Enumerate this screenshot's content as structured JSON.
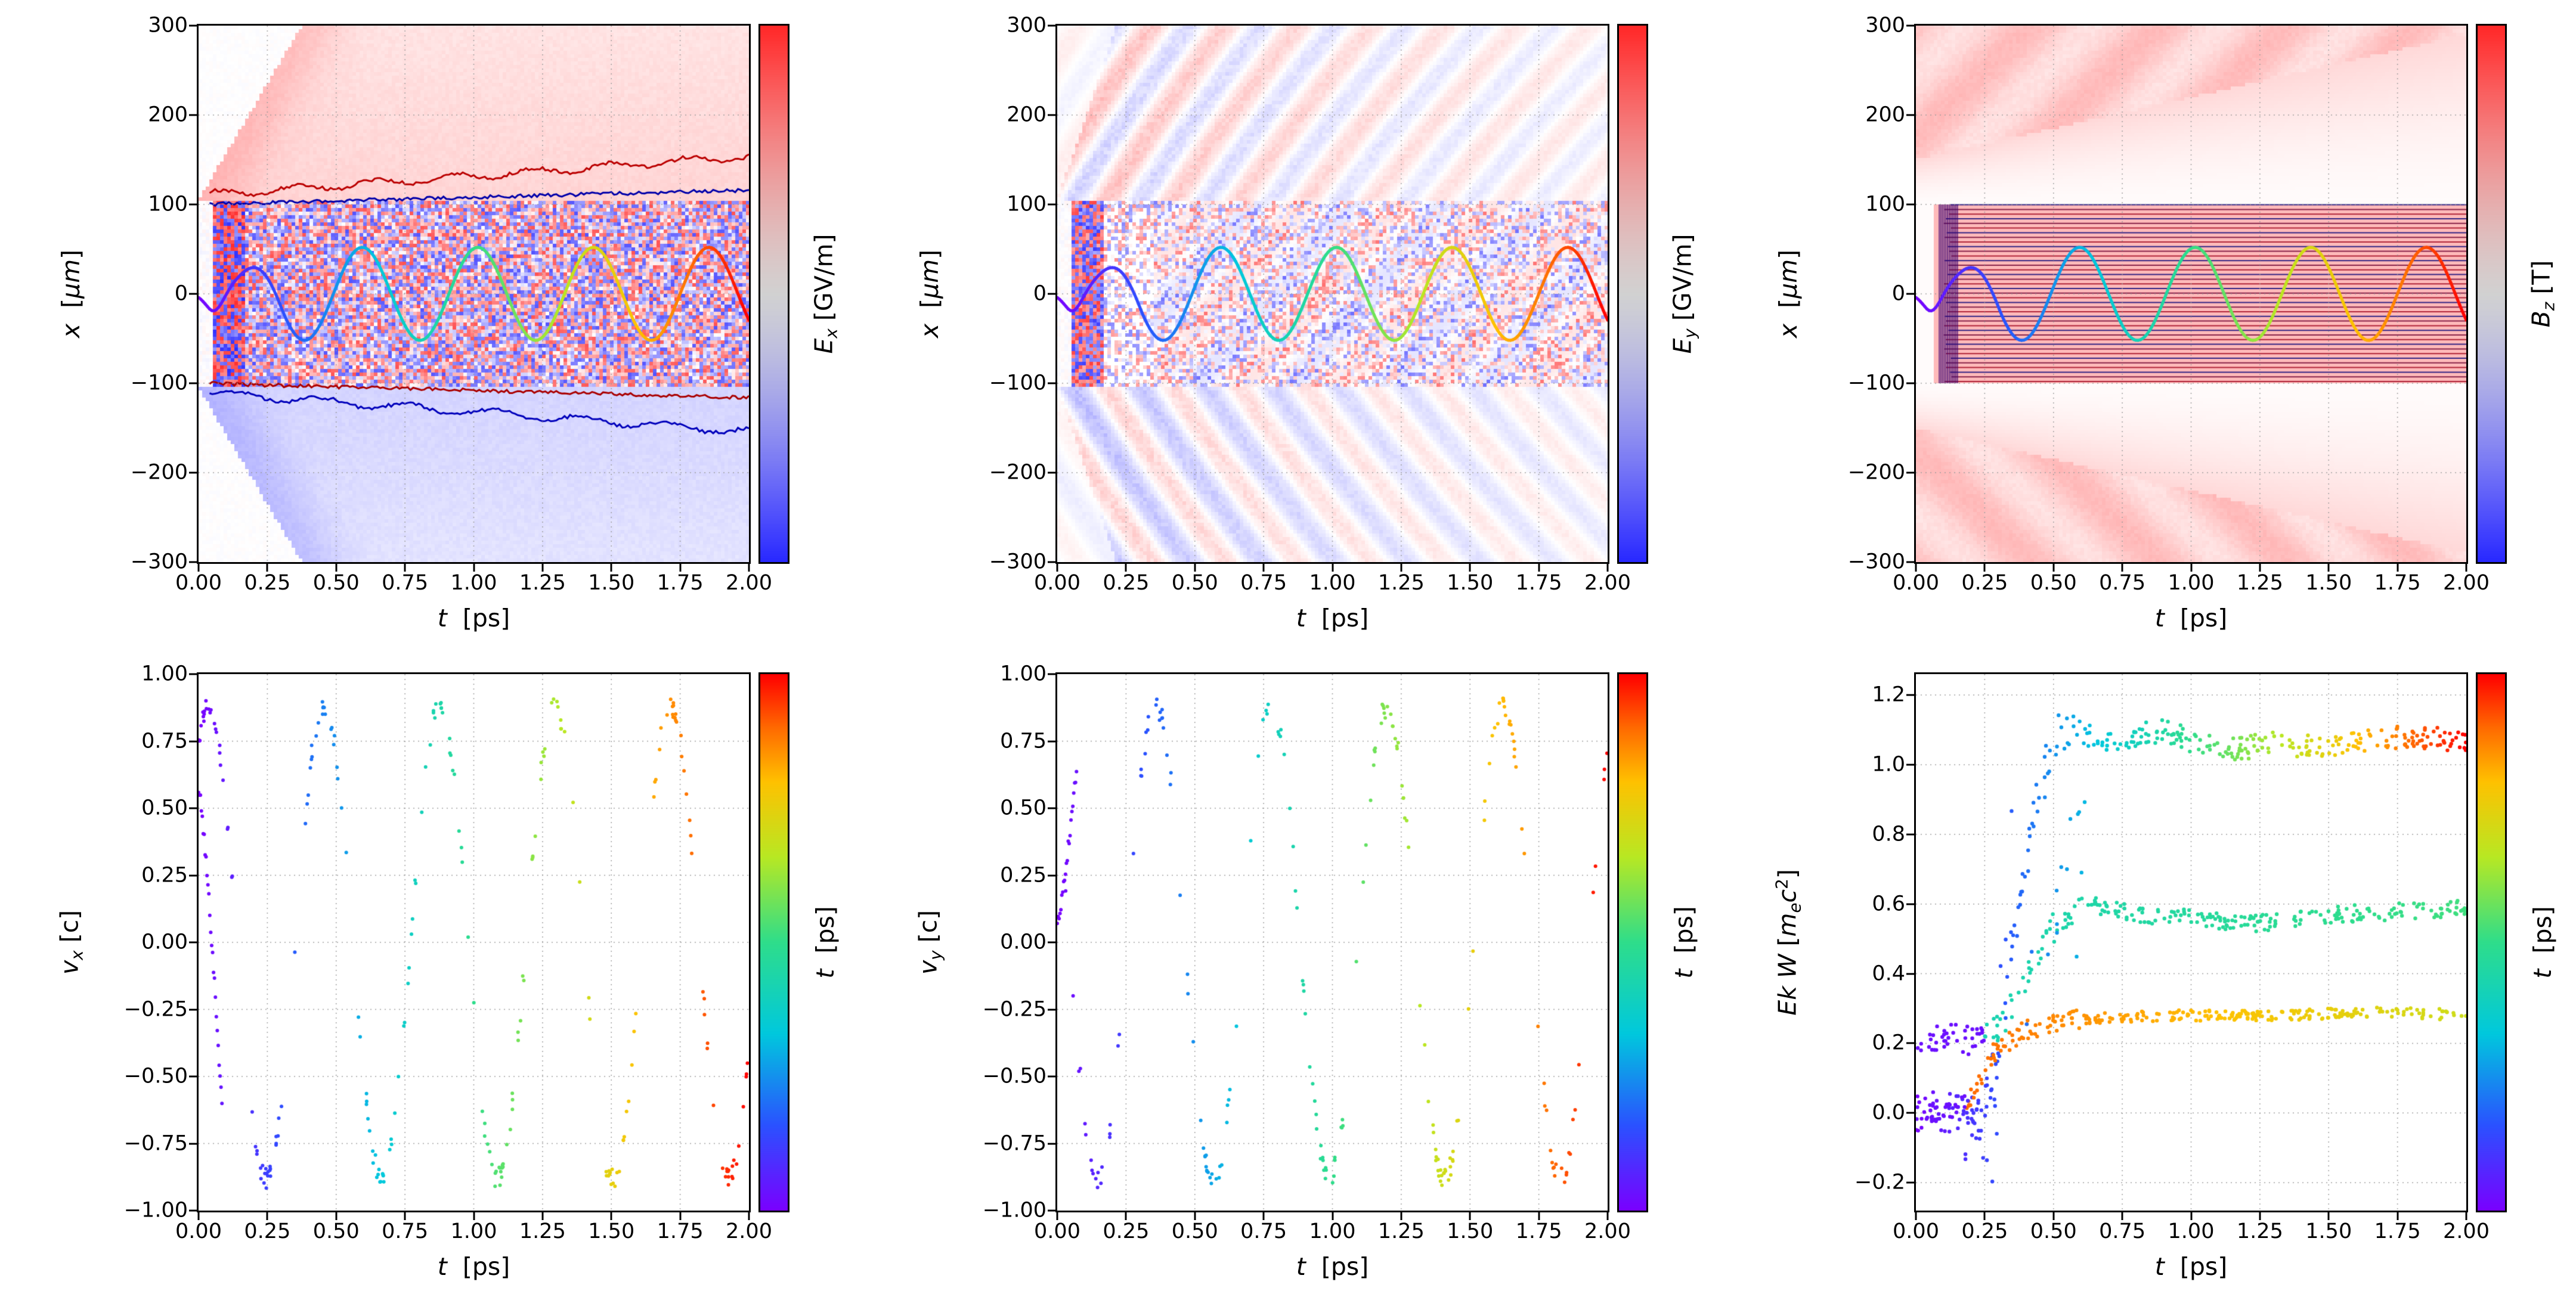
{
  "figure": {
    "background": "#ffffff",
    "description": "2x3 grid of particle-in-cell simulation diagnostic panels: field maps Ex, Ey, Bz vs (t,x) with a time-colored particle trajectory, and scatter plots of vx, vy and kinetic energy vs time colored by t"
  },
  "palettes": {
    "rainbow": [
      [
        0,
        "#7a00ff"
      ],
      [
        0.16,
        "#2a52ff"
      ],
      [
        0.33,
        "#00c8dd"
      ],
      [
        0.5,
        "#2edd8b"
      ],
      [
        0.66,
        "#b8e823"
      ],
      [
        0.8,
        "#ffc100"
      ],
      [
        0.9,
        "#ff6a00"
      ],
      [
        1,
        "#ff0000"
      ]
    ],
    "field_pos": "#ff0000",
    "field_neg": "#0000ff",
    "grid": "#999999"
  },
  "chart_data": [
    {
      "id": "ex-map",
      "type": "heatmap",
      "field": "Ex",
      "seed": 7,
      "xlabel_segments": [
        {
          "t": "t",
          "it": true
        },
        {
          "t": "  [ps]"
        }
      ],
      "ylabel_segments": [
        {
          "t": "x",
          "it": true
        },
        {
          "t": "  ["
        },
        {
          "t": "μm",
          "it": true
        },
        {
          "t": "]"
        }
      ],
      "colorbar": {
        "colormap": "bwr",
        "label_segments": [
          {
            "t": "E",
            "it": true
          },
          {
            "t": "x",
            "it": true,
            "sub": true
          },
          {
            "t": " [GV/m]"
          }
        ]
      },
      "xlim": [
        0,
        2
      ],
      "ylim": [
        -300,
        300
      ],
      "grid": true,
      "xticks": {
        "values": [
          0,
          0.25,
          0.5,
          0.75,
          1,
          1.25,
          1.5,
          1.75,
          2
        ],
        "labels": [
          "0.00",
          "0.25",
          "0.50",
          "0.75",
          "1.00",
          "1.25",
          "1.50",
          "1.75",
          "2.00"
        ]
      },
      "yticks": {
        "values": [
          300,
          200,
          100,
          0,
          -100,
          -200,
          -300
        ],
        "labels": [
          "300",
          "200",
          "100",
          "0",
          "−100",
          "−200",
          "−300"
        ]
      },
      "features": {
        "core_halfwidth": 105,
        "edge_start": 110,
        "edge_growth": 22,
        "inner_line": 100,
        "inner_line_growth": 8,
        "wedge_slope": 520,
        "wash": 0.2,
        "speckle": 0.8,
        "burst_t": [
          0.055,
          0.17
        ]
      },
      "trajectory": {
        "amp": 52,
        "period": 0.42,
        "t0": 0.07,
        "ramp": 0.28,
        "dip_t": 0.055,
        "dip_a": -18,
        "dip_w": 0.045,
        "color_by": "t"
      }
    },
    {
      "id": "ey-map",
      "type": "heatmap",
      "field": "Ey",
      "seed": 13,
      "xlabel_segments": [
        {
          "t": "t",
          "it": true
        },
        {
          "t": "  [ps]"
        }
      ],
      "ylabel_segments": [
        {
          "t": "x",
          "it": true
        },
        {
          "t": "  ["
        },
        {
          "t": "μm",
          "it": true
        },
        {
          "t": "]"
        }
      ],
      "colorbar": {
        "colormap": "bwr",
        "label_segments": [
          {
            "t": "E",
            "it": true
          },
          {
            "t": "y",
            "it": true,
            "sub": true
          },
          {
            "t": " [GV/m]"
          }
        ]
      },
      "xlim": [
        0,
        2
      ],
      "ylim": [
        -300,
        300
      ],
      "grid": true,
      "xticks": {
        "values": [
          0,
          0.25,
          0.5,
          0.75,
          1,
          1.25,
          1.5,
          1.75,
          2
        ],
        "labels": [
          "0.00",
          "0.25",
          "0.50",
          "0.75",
          "1.00",
          "1.25",
          "1.50",
          "1.75",
          "2.00"
        ]
      },
      "yticks": {
        "values": [
          300,
          200,
          100,
          0,
          -100,
          -200,
          -300
        ],
        "labels": [
          "300",
          "200",
          "100",
          "0",
          "−100",
          "−200",
          "−300"
        ]
      },
      "features": {
        "core_halfwidth": 105,
        "stripe_amp": 0.34,
        "stripe_freq": 26,
        "stripe_spatial": 0.05,
        "decay": 0.55,
        "overlay_amp": 0.12,
        "burst_t": [
          0.055,
          0.17
        ]
      },
      "trajectory": {
        "amp": 52,
        "period": 0.42,
        "t0": 0.07,
        "ramp": 0.28,
        "dip_t": 0.055,
        "dip_a": -18,
        "dip_w": 0.045,
        "color_by": "t"
      }
    },
    {
      "id": "bz-map",
      "type": "heatmap",
      "field": "Bz",
      "seed": 21,
      "xlabel_segments": [
        {
          "t": "t",
          "it": true
        },
        {
          "t": "  [ps]"
        }
      ],
      "ylabel_segments": [
        {
          "t": "x",
          "it": true
        },
        {
          "t": "  ["
        },
        {
          "t": "μm",
          "it": true
        },
        {
          "t": "]"
        }
      ],
      "colorbar": {
        "colormap": "bwr",
        "label_segments": [
          {
            "t": "B",
            "it": true
          },
          {
            "t": "z",
            "it": true,
            "sub": true
          },
          {
            "t": " [T]"
          }
        ]
      },
      "xlim": [
        0,
        2
      ],
      "ylim": [
        -300,
        300
      ],
      "grid": true,
      "xticks": {
        "values": [
          0,
          0.25,
          0.5,
          0.75,
          1,
          1.25,
          1.5,
          1.75,
          2
        ],
        "labels": [
          "0.00",
          "0.25",
          "0.50",
          "0.75",
          "1.00",
          "1.25",
          "1.50",
          "1.75",
          "2.00"
        ]
      },
      "yticks": {
        "values": [
          300,
          200,
          100,
          0,
          -100,
          -200,
          -300
        ],
        "labels": [
          "300",
          "200",
          "100",
          "0",
          "−100",
          "−200",
          "−300"
        ]
      },
      "features": {
        "background": 0.27,
        "core_halfwidth": 100,
        "gap_outer_start": 150,
        "gap_growth": 70,
        "comb_t": [
          0.085,
          0.155
        ],
        "stripe_colors": [
          "#9e0019",
          "#6b0030",
          "#000078"
        ]
      },
      "trajectory": {
        "amp": 52,
        "period": 0.42,
        "t0": 0.07,
        "ramp": 0.28,
        "dip_t": 0.055,
        "dip_a": -18,
        "dip_w": 0.045,
        "color_by": "t"
      }
    },
    {
      "id": "vx-scatter",
      "type": "scatter",
      "seed": 101,
      "xlabel_segments": [
        {
          "t": "t",
          "it": true
        },
        {
          "t": "  [ps]"
        }
      ],
      "ylabel_segments": [
        {
          "t": "v",
          "it": true
        },
        {
          "t": "x",
          "it": true,
          "sub": true
        },
        {
          "t": " [c]"
        }
      ],
      "colorbar": {
        "colormap": "rainbow",
        "label_segments": [
          {
            "t": "t",
            "it": true
          },
          {
            "t": "  [ps]"
          }
        ]
      },
      "xlim": [
        0,
        2
      ],
      "ylim": [
        -1,
        1
      ],
      "grid": true,
      "xticks": {
        "values": [
          0,
          0.25,
          0.5,
          0.75,
          1,
          1.25,
          1.5,
          1.75,
          2
        ],
        "labels": [
          "0.00",
          "0.25",
          "0.50",
          "0.75",
          "1.00",
          "1.25",
          "1.50",
          "1.75",
          "2.00"
        ]
      },
      "yticks": {
        "values": [
          1,
          0.75,
          0.5,
          0.25,
          0,
          -0.25,
          -0.5,
          -0.75,
          -1
        ],
        "labels": [
          "1.00",
          "0.75",
          "0.50",
          "0.25",
          "0.00",
          "−0.25",
          "−0.50",
          "−0.75",
          "−1.00"
        ]
      },
      "series": {
        "kind": "velocity",
        "amp": 0.88,
        "period": 0.42,
        "phase": -0.07,
        "phase_offset": 0,
        "n": 560,
        "jitter": 0.04,
        "start_arc": {
          "t_start": 0,
          "t_end": 0.085,
          "v_start": 0.57,
          "v_end": -0.62,
          "n": 26
        }
      },
      "color_by": "t"
    },
    {
      "id": "vy-scatter",
      "type": "scatter",
      "seed": 202,
      "xlabel_segments": [
        {
          "t": "t",
          "it": true
        },
        {
          "t": "  [ps]"
        }
      ],
      "ylabel_segments": [
        {
          "t": "v",
          "it": true
        },
        {
          "t": "y",
          "it": true,
          "sub": true
        },
        {
          "t": " [c]"
        }
      ],
      "colorbar": {
        "colormap": "rainbow",
        "label_segments": [
          {
            "t": "t",
            "it": true
          },
          {
            "t": "  [ps]"
          }
        ]
      },
      "xlim": [
        0,
        2
      ],
      "ylim": [
        -1,
        1
      ],
      "grid": true,
      "xticks": {
        "values": [
          0,
          0.25,
          0.5,
          0.75,
          1,
          1.25,
          1.5,
          1.75,
          2
        ],
        "labels": [
          "0.00",
          "0.25",
          "0.50",
          "0.75",
          "1.00",
          "1.25",
          "1.50",
          "1.75",
          "2.00"
        ]
      },
      "yticks": {
        "values": [
          1,
          0.75,
          0.5,
          0.25,
          0,
          -0.25,
          -0.5,
          -0.75,
          -1
        ],
        "labels": [
          "1.00",
          "0.75",
          "0.50",
          "0.25",
          "0.00",
          "−0.25",
          "−0.50",
          "−0.75",
          "−1.00"
        ]
      },
      "series": {
        "kind": "velocity",
        "amp": 0.88,
        "period": 0.42,
        "phase": -0.07,
        "phase_offset": 1.45,
        "n": 560,
        "jitter": 0.04,
        "start_arc": {
          "t_start": 0,
          "t_end": 0.07,
          "v_start": 0.08,
          "v_end": 0.65,
          "n": 22
        }
      },
      "color_by": "t"
    },
    {
      "id": "energy-scatter",
      "type": "scatter",
      "seed": 303,
      "xlabel_segments": [
        {
          "t": "t",
          "it": true
        },
        {
          "t": "  [ps]"
        }
      ],
      "ylabel_segments": [
        {
          "t": "Ek W",
          "it": true
        },
        {
          "t": " ["
        },
        {
          "t": "m",
          "it": true
        },
        {
          "t": "e",
          "it": true,
          "sub": true
        },
        {
          "t": "c",
          "it": true
        },
        {
          "t": "2",
          "sup": true
        },
        {
          "t": "]"
        }
      ],
      "colorbar": {
        "colormap": "rainbow",
        "label_segments": [
          {
            "t": "t",
            "it": true
          },
          {
            "t": "  [ps]"
          }
        ]
      },
      "xlim": [
        0,
        2
      ],
      "ylim": [
        -0.28,
        1.26
      ],
      "grid": true,
      "xticks": {
        "values": [
          0,
          0.25,
          0.5,
          0.75,
          1,
          1.25,
          1.5,
          1.75,
          2
        ],
        "labels": [
          "0.00",
          "0.25",
          "0.50",
          "0.75",
          "1.00",
          "1.25",
          "1.50",
          "1.75",
          "2.00"
        ]
      },
      "yticks": {
        "values": [
          1.2,
          1.0,
          0.8,
          0.6,
          0.4,
          0.2,
          0.0,
          -0.2
        ],
        "labels": [
          "1.2",
          "1.0",
          "0.8",
          "0.6",
          "0.4",
          "0.2",
          "0.0",
          "−0.2"
        ]
      },
      "branches": [
        {
          "name": "top",
          "n": 330,
          "jitter": 0.028,
          "color": {
            "mode": "time"
          },
          "keypoints": [
            [
              0,
              0
            ],
            [
              0.18,
              0
            ],
            [
              0.24,
              -0.02
            ],
            [
              0.3,
              0.18
            ],
            [
              0.38,
              0.6
            ],
            [
              0.45,
              0.95
            ],
            [
              0.52,
              1.1
            ],
            [
              0.7,
              1.07
            ],
            [
              0.9,
              1.1
            ],
            [
              1.1,
              1.04
            ],
            [
              1.3,
              1.06
            ],
            [
              1.5,
              1.05
            ],
            [
              1.7,
              1.08
            ],
            [
              2,
              1.07
            ]
          ]
        },
        {
          "name": "middle",
          "n": 290,
          "jitter": 0.02,
          "color": {
            "mode": "phase",
            "t_early": 0.25,
            "u_early": 0.03,
            "u0": 0.42,
            "u1": 0.52
          },
          "keypoints": [
            [
              0,
              0.21
            ],
            [
              0.22,
              0.21
            ],
            [
              0.3,
              0.24
            ],
            [
              0.42,
              0.42
            ],
            [
              0.52,
              0.56
            ],
            [
              0.62,
              0.6
            ],
            [
              0.8,
              0.57
            ],
            [
              1.0,
              0.56
            ],
            [
              1.2,
              0.54
            ],
            [
              1.5,
              0.57
            ],
            [
              1.8,
              0.58
            ],
            [
              2,
              0.59
            ]
          ]
        },
        {
          "name": "bottom",
          "n": 310,
          "jitter": 0.013,
          "color": {
            "mode": "phase",
            "t_early": 0.18,
            "u_early": 0.03,
            "u0": 0.9,
            "u1": 0.7
          },
          "keypoints": [
            [
              0,
              0
            ],
            [
              0.14,
              0
            ],
            [
              0.2,
              0.05
            ],
            [
              0.28,
              0.17
            ],
            [
              0.4,
              0.24
            ],
            [
              0.6,
              0.27
            ],
            [
              0.9,
              0.28
            ],
            [
              1.3,
              0.28
            ],
            [
              1.7,
              0.29
            ],
            [
              2,
              0.28
            ]
          ]
        }
      ],
      "strays": [
        {
          "n": 14,
          "t": [
            0.18,
            0.3
          ],
          "y": [
            -0.2,
            0.05
          ],
          "mode": "time"
        },
        {
          "n": 20,
          "t": [
            0.3,
            0.62
          ],
          "y": [
            0.15,
            0.95
          ],
          "mode": "time"
        }
      ],
      "color_by": "t"
    }
  ]
}
